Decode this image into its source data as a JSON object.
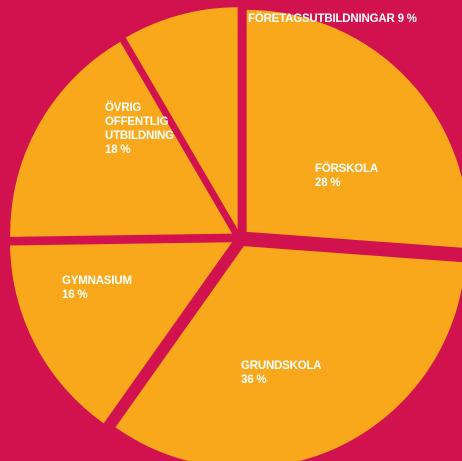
{
  "chart_data": {
    "type": "pie",
    "categories": [
      "FÖRSKOLA",
      "GRUNDSKOLA",
      "GYMNASIUM",
      "ÖVRIG OFFENTLIG UTBILDNING",
      "FÖRETAGSUTBILDNINGAR"
    ],
    "values": [
      28,
      36,
      16,
      18,
      9
    ],
    "value_labels": [
      "28 %",
      "36 %",
      "16 %",
      "18 %",
      "9 %"
    ],
    "color": "#f9a81b",
    "background": "#d2124e"
  }
}
